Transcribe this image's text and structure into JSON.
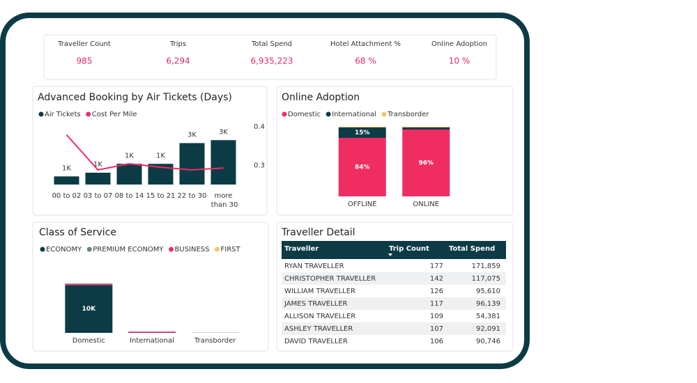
{
  "kpis": [
    {
      "label": "Traveller Count",
      "value": "985"
    },
    {
      "label": "Trips",
      "value": "6,294"
    },
    {
      "label": "Total Spend",
      "value": "6,935,223"
    },
    {
      "label": "Hotel Attachment %",
      "value": "68 %"
    },
    {
      "label": "Online Adoption",
      "value": "10 %"
    }
  ],
  "advanced_booking": {
    "type": "bar",
    "title": "Advanced Booking by Air Tickets (Days)",
    "categories": [
      "00 to 02",
      "03 to 07",
      "08 to 14",
      "15 to 21",
      "22 to 30",
      "more than 30"
    ],
    "series": [
      {
        "name": "Air Tickets",
        "color": "#0d3b45",
        "values": [
          550,
          800,
          1400,
          1400,
          2800,
          3000
        ],
        "value_labels": [
          "1K",
          "1K",
          "1K",
          "1K",
          "3K",
          "3K"
        ]
      },
      {
        "name": "Cost Per Mile",
        "color": "#ef2d62",
        "axis": "y2",
        "type": "line",
        "values": [
          0.379,
          0.288,
          0.304,
          0.295,
          0.288,
          0.293
        ]
      }
    ],
    "ylim": [
      0,
      4000
    ],
    "y2lim": [
      0.25,
      0.4
    ],
    "y2ticks": [
      0.3,
      0.4
    ]
  },
  "online_adoption": {
    "type": "stacked_bar",
    "title": "Online Adoption",
    "categories": [
      "OFFLINE",
      "ONLINE"
    ],
    "series": [
      {
        "name": "Domestic",
        "color": "#ef2d62",
        "values": [
          84,
          96
        ],
        "value_labels": [
          "84%",
          "96%"
        ]
      },
      {
        "name": "International",
        "color": "#0d3b45",
        "values": [
          15,
          3
        ],
        "value_labels": [
          "15%",
          null
        ]
      },
      {
        "name": "Transborder",
        "color": "#f5c56b",
        "values": [
          1,
          1
        ]
      }
    ],
    "ylim": [
      0,
      100
    ]
  },
  "class_of_service": {
    "type": "stacked_bar",
    "title": "Class of Service",
    "categories": [
      "Domestic",
      "International",
      "Transborder"
    ],
    "series": [
      {
        "name": "ECONOMY",
        "color": "#0d3b45",
        "values": [
          10000,
          60,
          30
        ],
        "value_labels": [
          "10K",
          null,
          null
        ]
      },
      {
        "name": "PREMIUM ECONOMY",
        "color": "#5f8a88",
        "values": [
          40,
          0,
          10
        ]
      },
      {
        "name": "BUSINESS",
        "color": "#ef2d62",
        "values": [
          250,
          200,
          0
        ]
      },
      {
        "name": "FIRST",
        "color": "#f5c56b",
        "values": [
          20,
          0,
          0
        ]
      }
    ],
    "ylim": [
      0,
      15000
    ]
  },
  "traveller_detail": {
    "title": "Traveller Detail",
    "columns": [
      "Traveller",
      "Trip Count",
      "Total Spend"
    ],
    "rows": [
      [
        "RYAN TRAVELLER",
        "177",
        "171,859"
      ],
      [
        "CHRISTOPHER TRAVELLER",
        "142",
        "117,075"
      ],
      [
        "WILLIAM TRAVELLER",
        "126",
        "95,610"
      ],
      [
        "JAMES TRAVELLER",
        "117",
        "96,139"
      ],
      [
        "ALLISON TRAVELLER",
        "109",
        "54,381"
      ],
      [
        "ASHLEY TRAVELLER",
        "107",
        "92,091"
      ],
      [
        "DAVID TRAVELLER",
        "106",
        "90,746"
      ]
    ]
  }
}
